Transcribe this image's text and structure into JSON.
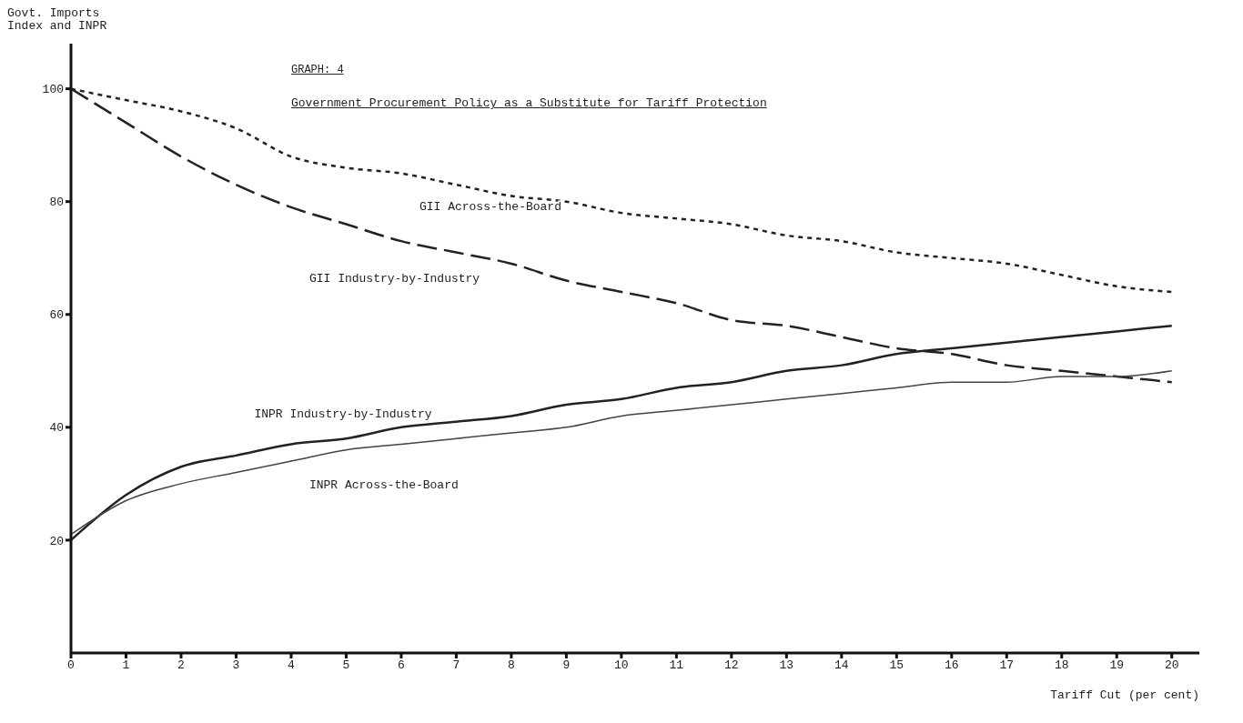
{
  "chart_data": {
    "type": "line",
    "title": "GRAPH:  4",
    "subtitle": "Government Procurement Policy as a Substitute for Tariff Protection",
    "xlabel": "Tariff Cut (per cent)",
    "ylabel": "Govt. Imports Index and INPR",
    "x": [
      0,
      1,
      2,
      3,
      4,
      5,
      6,
      7,
      8,
      9,
      10,
      11,
      12,
      13,
      14,
      15,
      16,
      17,
      18,
      19,
      20
    ],
    "xlim": [
      0,
      20.5
    ],
    "xticks": [
      0,
      1,
      2,
      3,
      4,
      5,
      6,
      7,
      8,
      9,
      10,
      11,
      12,
      13,
      14,
      15,
      16,
      17,
      18,
      19,
      20
    ],
    "ylim": [
      0,
      108
    ],
    "yticks": [
      20,
      40,
      60,
      80,
      100
    ],
    "grid": false,
    "legend": false,
    "marker": "none",
    "series": [
      {
        "name": "GII  Across-the-Board",
        "color": "#222222",
        "line_style": "dotted",
        "values": [
          100,
          98,
          96,
          93,
          88,
          86,
          85,
          83,
          81,
          80,
          78,
          77,
          76,
          74,
          73,
          71,
          70,
          69,
          67,
          65,
          64
        ]
      },
      {
        "name": "GII Industry-by-Industry",
        "color": "#222222",
        "line_style": "dashed",
        "values": [
          100,
          94,
          88,
          83,
          79,
          76,
          73,
          71,
          69,
          66,
          64,
          62,
          59,
          58,
          56,
          54,
          53,
          51,
          50,
          49,
          48
        ]
      },
      {
        "name": "INPR Industry-by-Industry",
        "color": "#222222",
        "line_style": "solid",
        "values": [
          20,
          28,
          33,
          35,
          37,
          38,
          40,
          41,
          42,
          44,
          45,
          47,
          48,
          50,
          51,
          53,
          54,
          55,
          56,
          57,
          58
        ]
      },
      {
        "name": "INPR Across-the-Board",
        "color": "#444444",
        "line_style": "solid",
        "values": [
          21,
          27,
          30,
          32,
          34,
          36,
          37,
          38,
          39,
          40,
          42,
          43,
          44,
          45,
          46,
          47,
          48,
          48,
          49,
          49,
          50
        ]
      }
    ]
  }
}
